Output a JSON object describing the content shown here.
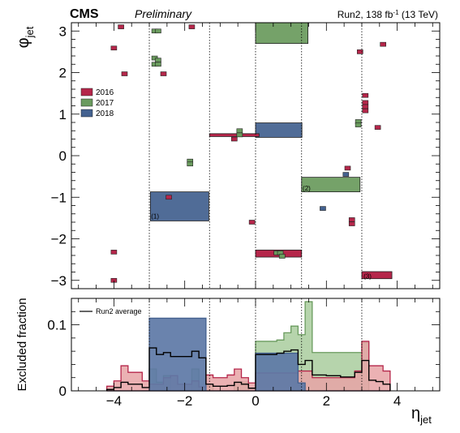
{
  "header": {
    "experiment": "CMS",
    "status": "Preliminary",
    "lumi_prefix": "Run2, 138 fb",
    "lumi_sup": "-1",
    "lumi_suffix": " (13 TeV)"
  },
  "colors": {
    "y2016": "#b5264a",
    "y2017": "#6a9b5e",
    "y2018": "#43618f",
    "y2016_fill": "#e8a3a6",
    "y2017_fill": "#a9cc9e",
    "y2018_fill": "#5d78a6"
  },
  "chart_data": [
    {
      "type": "map",
      "ylabel_main": "φ",
      "ylabel_sub": "jet",
      "xlim": [
        -5.2,
        5.2
      ],
      "ylim": [
        -3.2,
        3.2
      ],
      "yticks": [
        3,
        2,
        1,
        0,
        -1,
        -2,
        -3
      ],
      "ytick_labels": [
        "3",
        "2",
        "1",
        "0",
        "−1",
        "−2",
        "−3"
      ],
      "vlines": [
        -3.0,
        -1.3,
        0.0,
        1.3,
        3.0
      ],
      "legend": {
        "position": "left",
        "entries": [
          "2016",
          "2017",
          "2018"
        ]
      },
      "annotations": [
        {
          "text": "(1)",
          "x": -2.95,
          "y": -1.45
        },
        {
          "text": "(2)",
          "x": 1.33,
          "y": -0.78
        },
        {
          "text": "(3)",
          "x": 3.05,
          "y": -2.9
        }
      ],
      "regions": [
        {
          "year": "2018",
          "x0": -2.97,
          "x1": -1.32,
          "y0": -1.57,
          "y1": -0.87
        },
        {
          "year": "2018",
          "x0": 0.0,
          "x1": 1.31,
          "y0": 0.44,
          "y1": 0.79
        },
        {
          "year": "2017",
          "x0": 0.0,
          "x1": 1.48,
          "y0": 2.7,
          "y1": 3.2
        },
        {
          "year": "2017",
          "x0": 1.3,
          "x1": 2.95,
          "y0": -0.87,
          "y1": -0.52
        },
        {
          "year": "2016",
          "x0": 3.0,
          "x1": 3.85,
          "y0": -2.96,
          "y1": -2.79
        },
        {
          "year": "2016",
          "x0": 0.0,
          "x1": 1.3,
          "y0": -2.44,
          "y1": -2.27
        },
        {
          "year": "2016",
          "x0": -1.3,
          "x1": 0.1,
          "y0": 0.46,
          "y1": 0.53
        }
      ],
      "cells": [
        {
          "year": "2016",
          "x": -4.0,
          "y": 2.59
        },
        {
          "year": "2016",
          "x": -3.8,
          "y": 3.1
        },
        {
          "year": "2016",
          "x": -3.7,
          "y": 1.97
        },
        {
          "year": "2016",
          "x": -1.8,
          "y": 3.1
        },
        {
          "year": "2016",
          "x": -2.6,
          "y": 1.97
        },
        {
          "year": "2016",
          "x": -2.45,
          "y": -1.0
        },
        {
          "year": "2016",
          "x": -0.6,
          "y": 0.4
        },
        {
          "year": "2016",
          "x": -0.1,
          "y": -1.6
        },
        {
          "year": "2016",
          "x": -4.0,
          "y": -2.32
        },
        {
          "year": "2016",
          "x": -4.0,
          "y": -3.0
        },
        {
          "year": "2016",
          "x": 2.6,
          "y": -0.3
        },
        {
          "year": "2016",
          "x": 2.72,
          "y": -1.54
        },
        {
          "year": "2016",
          "x": 2.72,
          "y": -1.64
        },
        {
          "year": "2016",
          "x": 2.95,
          "y": 2.5
        },
        {
          "year": "2016",
          "x": 3.1,
          "y": 1.45
        },
        {
          "year": "2016",
          "x": 3.1,
          "y": 1.28
        },
        {
          "year": "2016",
          "x": 3.1,
          "y": 1.18
        },
        {
          "year": "2016",
          "x": 3.1,
          "y": 1.08
        },
        {
          "year": "2016",
          "x": 3.45,
          "y": 0.68
        },
        {
          "year": "2016",
          "x": 3.6,
          "y": 2.68
        },
        {
          "year": "2017",
          "x": -2.85,
          "y": 3.0
        },
        {
          "year": "2017",
          "x": -2.75,
          "y": 3.0
        },
        {
          "year": "2017",
          "x": -2.85,
          "y": 2.35
        },
        {
          "year": "2017",
          "x": -2.75,
          "y": 2.3
        },
        {
          "year": "2017",
          "x": -2.85,
          "y": 2.2
        },
        {
          "year": "2017",
          "x": -2.75,
          "y": 2.2
        },
        {
          "year": "2017",
          "x": -1.85,
          "y": -0.13
        },
        {
          "year": "2017",
          "x": -1.85,
          "y": -0.2
        },
        {
          "year": "2017",
          "x": -0.45,
          "y": 0.6
        },
        {
          "year": "2017",
          "x": -0.45,
          "y": 0.5
        },
        {
          "year": "2017",
          "x": 0.6,
          "y": -2.34
        },
        {
          "year": "2017",
          "x": 0.7,
          "y": -2.34
        },
        {
          "year": "2017",
          "x": 0.75,
          "y": -2.42
        },
        {
          "year": "2017",
          "x": 2.9,
          "y": 0.82
        },
        {
          "year": "2017",
          "x": 2.9,
          "y": 0.74
        },
        {
          "year": "2018",
          "x": 1.9,
          "y": -1.27
        },
        {
          "year": "2018",
          "x": 2.55,
          "y": -0.45
        }
      ]
    },
    {
      "type": "area",
      "ylabel": "Excluded fraction",
      "xlabel_main": "η",
      "xlabel_sub": "jet",
      "xlim": [
        -5.2,
        5.2
      ],
      "ylim": [
        0,
        0.14
      ],
      "yticks": [
        0,
        0.1
      ],
      "ytick_labels": [
        "0",
        "0.1"
      ],
      "xticks": [
        -4,
        -2,
        0,
        2,
        4
      ],
      "xtick_labels": [
        "−4",
        "−2",
        "0",
        "2",
        "4"
      ],
      "vlines": [
        -3.0,
        -1.3,
        0.0,
        1.3,
        3.0
      ],
      "legend": {
        "position": "top-left",
        "entries": [
          "Run2 average"
        ]
      },
      "bin_edges": [
        -4.2,
        -4.0,
        -3.8,
        -3.6,
        -3.4,
        -3.2,
        -3.0,
        -2.8,
        -2.6,
        -2.4,
        -2.2,
        -2.0,
        -1.8,
        -1.6,
        -1.4,
        -1.2,
        -1.0,
        -0.8,
        -0.6,
        -0.4,
        -0.2,
        0.0,
        0.2,
        0.4,
        0.6,
        0.8,
        1.0,
        1.2,
        1.4,
        1.6,
        1.8,
        2.0,
        2.2,
        2.4,
        2.6,
        2.8,
        3.0,
        3.2,
        3.4,
        3.6,
        3.8
      ],
      "series": [
        {
          "year": "2017",
          "values": [
            0,
            0,
            0,
            0,
            0,
            0,
            0.033,
            0.013,
            0.023,
            0,
            0,
            0,
            0.033,
            0,
            0.007,
            0,
            0,
            0,
            0.013,
            0.013,
            0,
            0.075,
            0.075,
            0.075,
            0.077,
            0.088,
            0.098,
            0.085,
            0.135,
            0.058,
            0.058,
            0.058,
            0.058,
            0.058,
            0.058,
            0.058,
            0.073,
            0,
            0,
            0,
            0
          ]
        },
        {
          "year": "2016",
          "values": [
            0.007,
            0.015,
            0.038,
            0.028,
            0.028,
            0.015,
            0.01,
            0.01,
            0.02,
            0.023,
            0.01,
            0.01,
            0.015,
            0.006,
            0.024,
            0.02,
            0.02,
            0.024,
            0.033,
            0.02,
            0.012,
            0.027,
            0.027,
            0.027,
            0.027,
            0.027,
            0.027,
            0.03,
            0.03,
            0.02,
            0.02,
            0.02,
            0.02,
            0.02,
            0.02,
            0.03,
            0.075,
            0.038,
            0.038,
            0.03,
            0.01
          ]
        },
        {
          "year": "2018",
          "values": [
            0,
            0,
            0,
            0,
            0,
            0,
            0.11,
            0.11,
            0.11,
            0.11,
            0.11,
            0.11,
            0.11,
            0.11,
            0,
            0,
            0,
            0,
            0,
            0,
            0,
            0.057,
            0.057,
            0.057,
            0.057,
            0.057,
            0.057,
            0.012,
            0,
            0,
            0,
            0,
            0,
            0,
            0,
            0,
            0,
            0,
            0,
            0,
            0
          ]
        },
        {
          "year": "Run2 average",
          "values": [
            0.002,
            0.005,
            0.013,
            0.01,
            0.01,
            0.005,
            0.065,
            0.055,
            0.058,
            0.052,
            0.052,
            0.052,
            0.06,
            0.05,
            0.01,
            0.007,
            0.007,
            0.008,
            0.013,
            0.01,
            0.004,
            0.055,
            0.055,
            0.055,
            0.057,
            0.06,
            0.062,
            0.04,
            0.046,
            0.024,
            0.024,
            0.023,
            0.023,
            0.021,
            0.021,
            0.028,
            0.046,
            0.016,
            0.014,
            0.01,
            0.003
          ]
        }
      ]
    }
  ]
}
